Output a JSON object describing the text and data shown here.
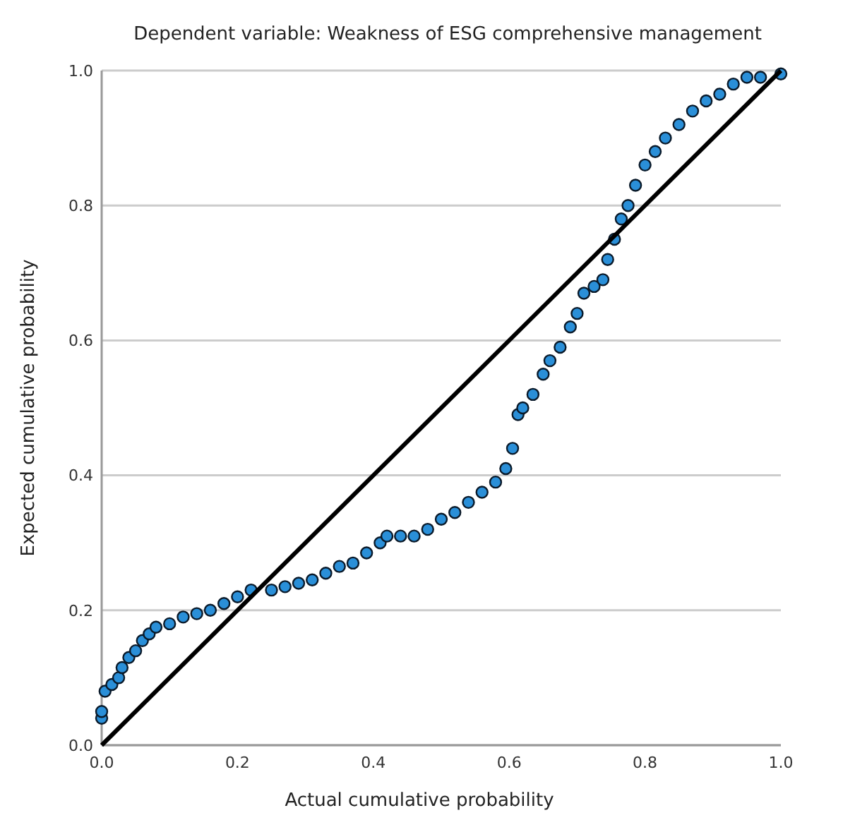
{
  "chart_data": {
    "type": "scatter",
    "title": "Dependent variable: Weakness of ESG comprehensive management",
    "xlabel": "Actual cumulative probability",
    "ylabel": "Expected cumulative probability",
    "xlim": [
      0,
      1
    ],
    "ylim": [
      0,
      1
    ],
    "xticks": [
      {
        "value": 0,
        "label": "0.0"
      },
      {
        "value": 0.2,
        "label": "0.2"
      },
      {
        "value": 0.4,
        "label": "0.4"
      },
      {
        "value": 0.6,
        "label": "0.6"
      },
      {
        "value": 0.8,
        "label": "0.8"
      },
      {
        "value": 1,
        "label": "1.0"
      }
    ],
    "yticks": [
      {
        "value": 0,
        "label": "0.0"
      },
      {
        "value": 0.2,
        "label": "0.2"
      },
      {
        "value": 0.4,
        "label": "0.4"
      },
      {
        "value": 0.6,
        "label": "0.6"
      },
      {
        "value": 0.8,
        "label": "0.8"
      },
      {
        "value": 1,
        "label": "1.0"
      }
    ],
    "grid": "y",
    "series": [
      {
        "color": "#2a8fd8",
        "marker": "circle",
        "x": [
          0,
          0,
          0.005,
          0.015,
          0.025,
          0.03,
          0.04,
          0.05,
          0.06,
          0.07,
          0.08,
          0.1,
          0.12,
          0.14,
          0.16,
          0.18,
          0.2,
          0.22,
          0.25,
          0.27,
          0.29,
          0.31,
          0.33,
          0.35,
          0.37,
          0.39,
          0.41,
          0.42,
          0.44,
          0.46,
          0.48,
          0.5,
          0.52,
          0.54,
          0.56,
          0.58,
          0.595,
          0.605,
          0.613,
          0.62,
          0.635,
          0.65,
          0.66,
          0.675,
          0.69,
          0.7,
          0.71,
          0.725,
          0.738,
          0.745,
          0.755,
          0.765,
          0.775,
          0.786,
          0.8,
          0.815,
          0.83,
          0.85,
          0.87,
          0.89,
          0.91,
          0.93,
          0.95,
          0.97,
          1
        ],
        "values": [
          0.04,
          0.05,
          0.08,
          0.09,
          0.1,
          0.115,
          0.13,
          0.14,
          0.155,
          0.165,
          0.175,
          0.18,
          0.19,
          0.195,
          0.2,
          0.21,
          0.22,
          0.23,
          0.23,
          0.235,
          0.24,
          0.245,
          0.255,
          0.265,
          0.27,
          0.285,
          0.3,
          0.31,
          0.31,
          0.31,
          0.32,
          0.335,
          0.345,
          0.36,
          0.375,
          0.39,
          0.41,
          0.44,
          0.49,
          0.5,
          0.52,
          0.55,
          0.57,
          0.59,
          0.62,
          0.64,
          0.67,
          0.68,
          0.69,
          0.72,
          0.75,
          0.78,
          0.8,
          0.83,
          0.86,
          0.88,
          0.9,
          0.92,
          0.94,
          0.955,
          0.965,
          0.98,
          0.99,
          0.99,
          0.995
        ]
      },
      {
        "type": "line",
        "color": "#000000",
        "line_style": "solid",
        "x": [
          0,
          1
        ],
        "values": [
          0,
          1
        ]
      }
    ]
  }
}
